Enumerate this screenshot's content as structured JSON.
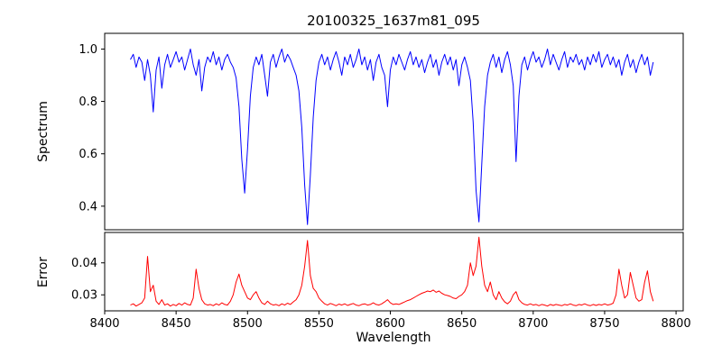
{
  "figure": {
    "title": "20100325_1637m81_095",
    "xlabel": "Wavelength",
    "background": "#ffffff"
  },
  "chart_data": [
    {
      "type": "line",
      "name": "spectrum",
      "title": "20100325_1637m81_095",
      "ylabel": "Spectrum",
      "color": "#0000ff",
      "x_start": 8418,
      "x_step": 2,
      "xlim": [
        8400,
        8805
      ],
      "ylim": [
        0.31,
        1.06
      ],
      "xtick_labels": [
        "8400",
        "8450",
        "8500",
        "8550",
        "8600",
        "8650",
        "8700",
        "8750",
        "8800"
      ],
      "ytick_labels": [
        "0.4",
        "0.6",
        "0.8",
        "1.0"
      ],
      "grid": false,
      "legend": "none",
      "values": [
        0.96,
        0.98,
        0.93,
        0.97,
        0.95,
        0.88,
        0.96,
        0.9,
        0.76,
        0.92,
        0.97,
        0.85,
        0.94,
        0.98,
        0.93,
        0.96,
        0.99,
        0.95,
        0.97,
        0.92,
        0.96,
        1.0,
        0.94,
        0.9,
        0.96,
        0.84,
        0.93,
        0.97,
        0.95,
        0.99,
        0.94,
        0.97,
        0.92,
        0.96,
        0.98,
        0.95,
        0.93,
        0.89,
        0.78,
        0.58,
        0.45,
        0.62,
        0.82,
        0.93,
        0.97,
        0.94,
        0.98,
        0.9,
        0.82,
        0.95,
        0.98,
        0.93,
        0.97,
        1.0,
        0.95,
        0.98,
        0.96,
        0.93,
        0.9,
        0.84,
        0.7,
        0.48,
        0.33,
        0.52,
        0.74,
        0.88,
        0.95,
        0.98,
        0.94,
        0.97,
        0.92,
        0.96,
        0.99,
        0.95,
        0.9,
        0.97,
        0.94,
        0.98,
        0.93,
        0.96,
        1.0,
        0.94,
        0.97,
        0.92,
        0.96,
        0.88,
        0.95,
        0.98,
        0.93,
        0.9,
        0.78,
        0.92,
        0.97,
        0.94,
        0.98,
        0.95,
        0.92,
        0.96,
        0.99,
        0.94,
        0.97,
        0.93,
        0.96,
        0.91,
        0.95,
        0.98,
        0.93,
        0.96,
        0.9,
        0.95,
        0.98,
        0.94,
        0.97,
        0.92,
        0.96,
        0.86,
        0.94,
        0.97,
        0.93,
        0.88,
        0.72,
        0.46,
        0.34,
        0.56,
        0.78,
        0.9,
        0.95,
        0.98,
        0.93,
        0.97,
        0.91,
        0.96,
        0.99,
        0.94,
        0.86,
        0.57,
        0.82,
        0.94,
        0.97,
        0.92,
        0.96,
        0.99,
        0.95,
        0.97,
        0.93,
        0.96,
        1.0,
        0.94,
        0.98,
        0.95,
        0.92,
        0.96,
        0.99,
        0.93,
        0.97,
        0.95,
        0.98,
        0.94,
        0.96,
        0.92,
        0.97,
        0.94,
        0.98,
        0.95,
        0.99,
        0.93,
        0.96,
        0.98,
        0.94,
        0.97,
        0.93,
        0.96,
        0.9,
        0.95,
        0.98,
        0.93,
        0.96,
        0.91,
        0.95,
        0.98,
        0.94,
        0.97,
        0.9,
        0.95
      ]
    },
    {
      "type": "line",
      "name": "error",
      "ylabel": "Error",
      "xlabel": "Wavelength",
      "color": "#ff0000",
      "x_start": 8418,
      "x_step": 2,
      "xlim": [
        8400,
        8805
      ],
      "ylim": [
        0.025,
        0.0495
      ],
      "xtick_labels": [
        "8400",
        "8450",
        "8500",
        "8550",
        "8600",
        "8650",
        "8700",
        "8750",
        "8800"
      ],
      "ytick_labels": [
        "0.03",
        "0.04"
      ],
      "grid": false,
      "legend": "none",
      "values": [
        0.0268,
        0.0272,
        0.0265,
        0.027,
        0.0275,
        0.029,
        0.042,
        0.031,
        0.033,
        0.028,
        0.027,
        0.0285,
        0.0268,
        0.0272,
        0.0265,
        0.027,
        0.0266,
        0.0273,
        0.0268,
        0.0275,
        0.027,
        0.0268,
        0.029,
        0.038,
        0.032,
        0.0285,
        0.0272,
        0.0268,
        0.027,
        0.0266,
        0.0272,
        0.0268,
        0.0275,
        0.027,
        0.0268,
        0.028,
        0.03,
        0.034,
        0.0365,
        0.033,
        0.031,
        0.029,
        0.0285,
        0.03,
        0.031,
        0.029,
        0.0275,
        0.027,
        0.028,
        0.0272,
        0.0268,
        0.027,
        0.0266,
        0.0272,
        0.0268,
        0.0274,
        0.027,
        0.0278,
        0.0285,
        0.03,
        0.033,
        0.039,
        0.047,
        0.036,
        0.032,
        0.031,
        0.029,
        0.028,
        0.0272,
        0.0268,
        0.0273,
        0.027,
        0.0266,
        0.0271,
        0.0268,
        0.0272,
        0.0267,
        0.027,
        0.0273,
        0.0268,
        0.0266,
        0.027,
        0.0272,
        0.0268,
        0.027,
        0.0275,
        0.027,
        0.0268,
        0.0272,
        0.0278,
        0.0285,
        0.0275,
        0.027,
        0.0272,
        0.027,
        0.0274,
        0.0278,
        0.0282,
        0.0285,
        0.029,
        0.0295,
        0.03,
        0.0305,
        0.0308,
        0.0312,
        0.031,
        0.0315,
        0.0308,
        0.0312,
        0.0305,
        0.03,
        0.0298,
        0.0295,
        0.029,
        0.0288,
        0.0295,
        0.03,
        0.031,
        0.033,
        0.04,
        0.036,
        0.039,
        0.048,
        0.039,
        0.033,
        0.031,
        0.034,
        0.03,
        0.0285,
        0.031,
        0.029,
        0.0278,
        0.0272,
        0.028,
        0.03,
        0.031,
        0.0285,
        0.0275,
        0.027,
        0.0268,
        0.0272,
        0.0268,
        0.027,
        0.0266,
        0.027,
        0.0268,
        0.0265,
        0.027,
        0.0267,
        0.027,
        0.0268,
        0.0266,
        0.027,
        0.0268,
        0.0272,
        0.0268,
        0.0266,
        0.027,
        0.0268,
        0.0272,
        0.0268,
        0.0266,
        0.027,
        0.0267,
        0.027,
        0.0268,
        0.0272,
        0.0268,
        0.027,
        0.0274,
        0.03,
        0.038,
        0.033,
        0.029,
        0.03,
        0.037,
        0.033,
        0.029,
        0.028,
        0.0285,
        0.034,
        0.0375,
        0.031,
        0.028
      ]
    }
  ]
}
